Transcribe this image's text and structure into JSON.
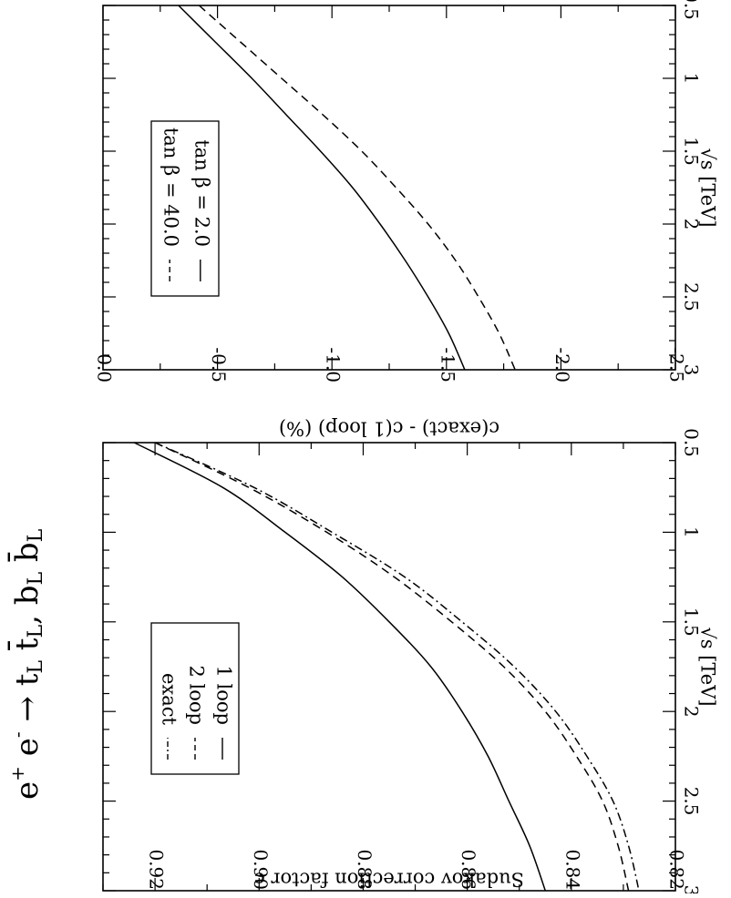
{
  "title": {
    "text": "e+ e- → tL t̄L, bL b̄L"
  },
  "chart_data": [
    {
      "type": "line",
      "xlabel": "√s  [TeV]",
      "ylabel": "Sudakov correction factor c",
      "xlim": [
        0.5,
        3.0
      ],
      "ylim": [
        0.82,
        0.93
      ],
      "xticks": [
        "0.5",
        "1",
        "1.5",
        "2",
        "2.5",
        "3"
      ],
      "yticks": [
        "0.82",
        "0.84",
        "0.86",
        "0.88",
        "0.90",
        "0.92"
      ],
      "legend_position": "inside lower-left",
      "x": [
        0.5,
        0.75,
        1.0,
        1.25,
        1.5,
        1.75,
        2.0,
        2.25,
        2.5,
        2.75,
        3.0
      ],
      "series": [
        {
          "name": "1 loop",
          "style": "solid",
          "values": [
            0.924,
            0.907,
            0.895,
            0.884,
            0.875,
            0.867,
            0.861,
            0.856,
            0.852,
            0.848,
            0.845
          ]
        },
        {
          "name": "2 loop",
          "style": "dashed",
          "values": [
            0.92,
            0.902,
            0.887,
            0.874,
            0.863,
            0.853,
            0.845,
            0.839,
            0.834,
            0.831,
            0.829
          ]
        },
        {
          "name": "exact",
          "style": "dashdot",
          "values": [
            0.92,
            0.901,
            0.886,
            0.872,
            0.861,
            0.851,
            0.843,
            0.837,
            0.832,
            0.829,
            0.827
          ]
        }
      ]
    },
    {
      "type": "line",
      "xlabel": "√s  [TeV]",
      "ylabel": "c(exact) - c(1 loop) (%)",
      "xlim": [
        0.5,
        3.0
      ],
      "ylim": [
        -2.5,
        0.0
      ],
      "xticks": [
        "0.5",
        "1",
        "1.5",
        "2",
        "2.5",
        "3"
      ],
      "yticks": [
        "0.0",
        "-0.5",
        "-1.0",
        "-1.5",
        "-2.0",
        "-2.5"
      ],
      "legend_position": "inside lower-left",
      "x": [
        0.5,
        0.75,
        1.0,
        1.25,
        1.5,
        1.75,
        2.0,
        2.25,
        2.5,
        2.75,
        3.0
      ],
      "series": [
        {
          "name": "tan β = 2.0",
          "style": "solid",
          "values": [
            -0.33,
            -0.49,
            -0.65,
            -0.8,
            -0.95,
            -1.09,
            -1.21,
            -1.32,
            -1.42,
            -1.51,
            -1.58
          ]
        },
        {
          "name": "tan β = 40.0",
          "style": "dashed",
          "values": [
            -0.42,
            -0.6,
            -0.78,
            -0.96,
            -1.13,
            -1.28,
            -1.42,
            -1.54,
            -1.64,
            -1.73,
            -1.8
          ]
        }
      ]
    }
  ]
}
